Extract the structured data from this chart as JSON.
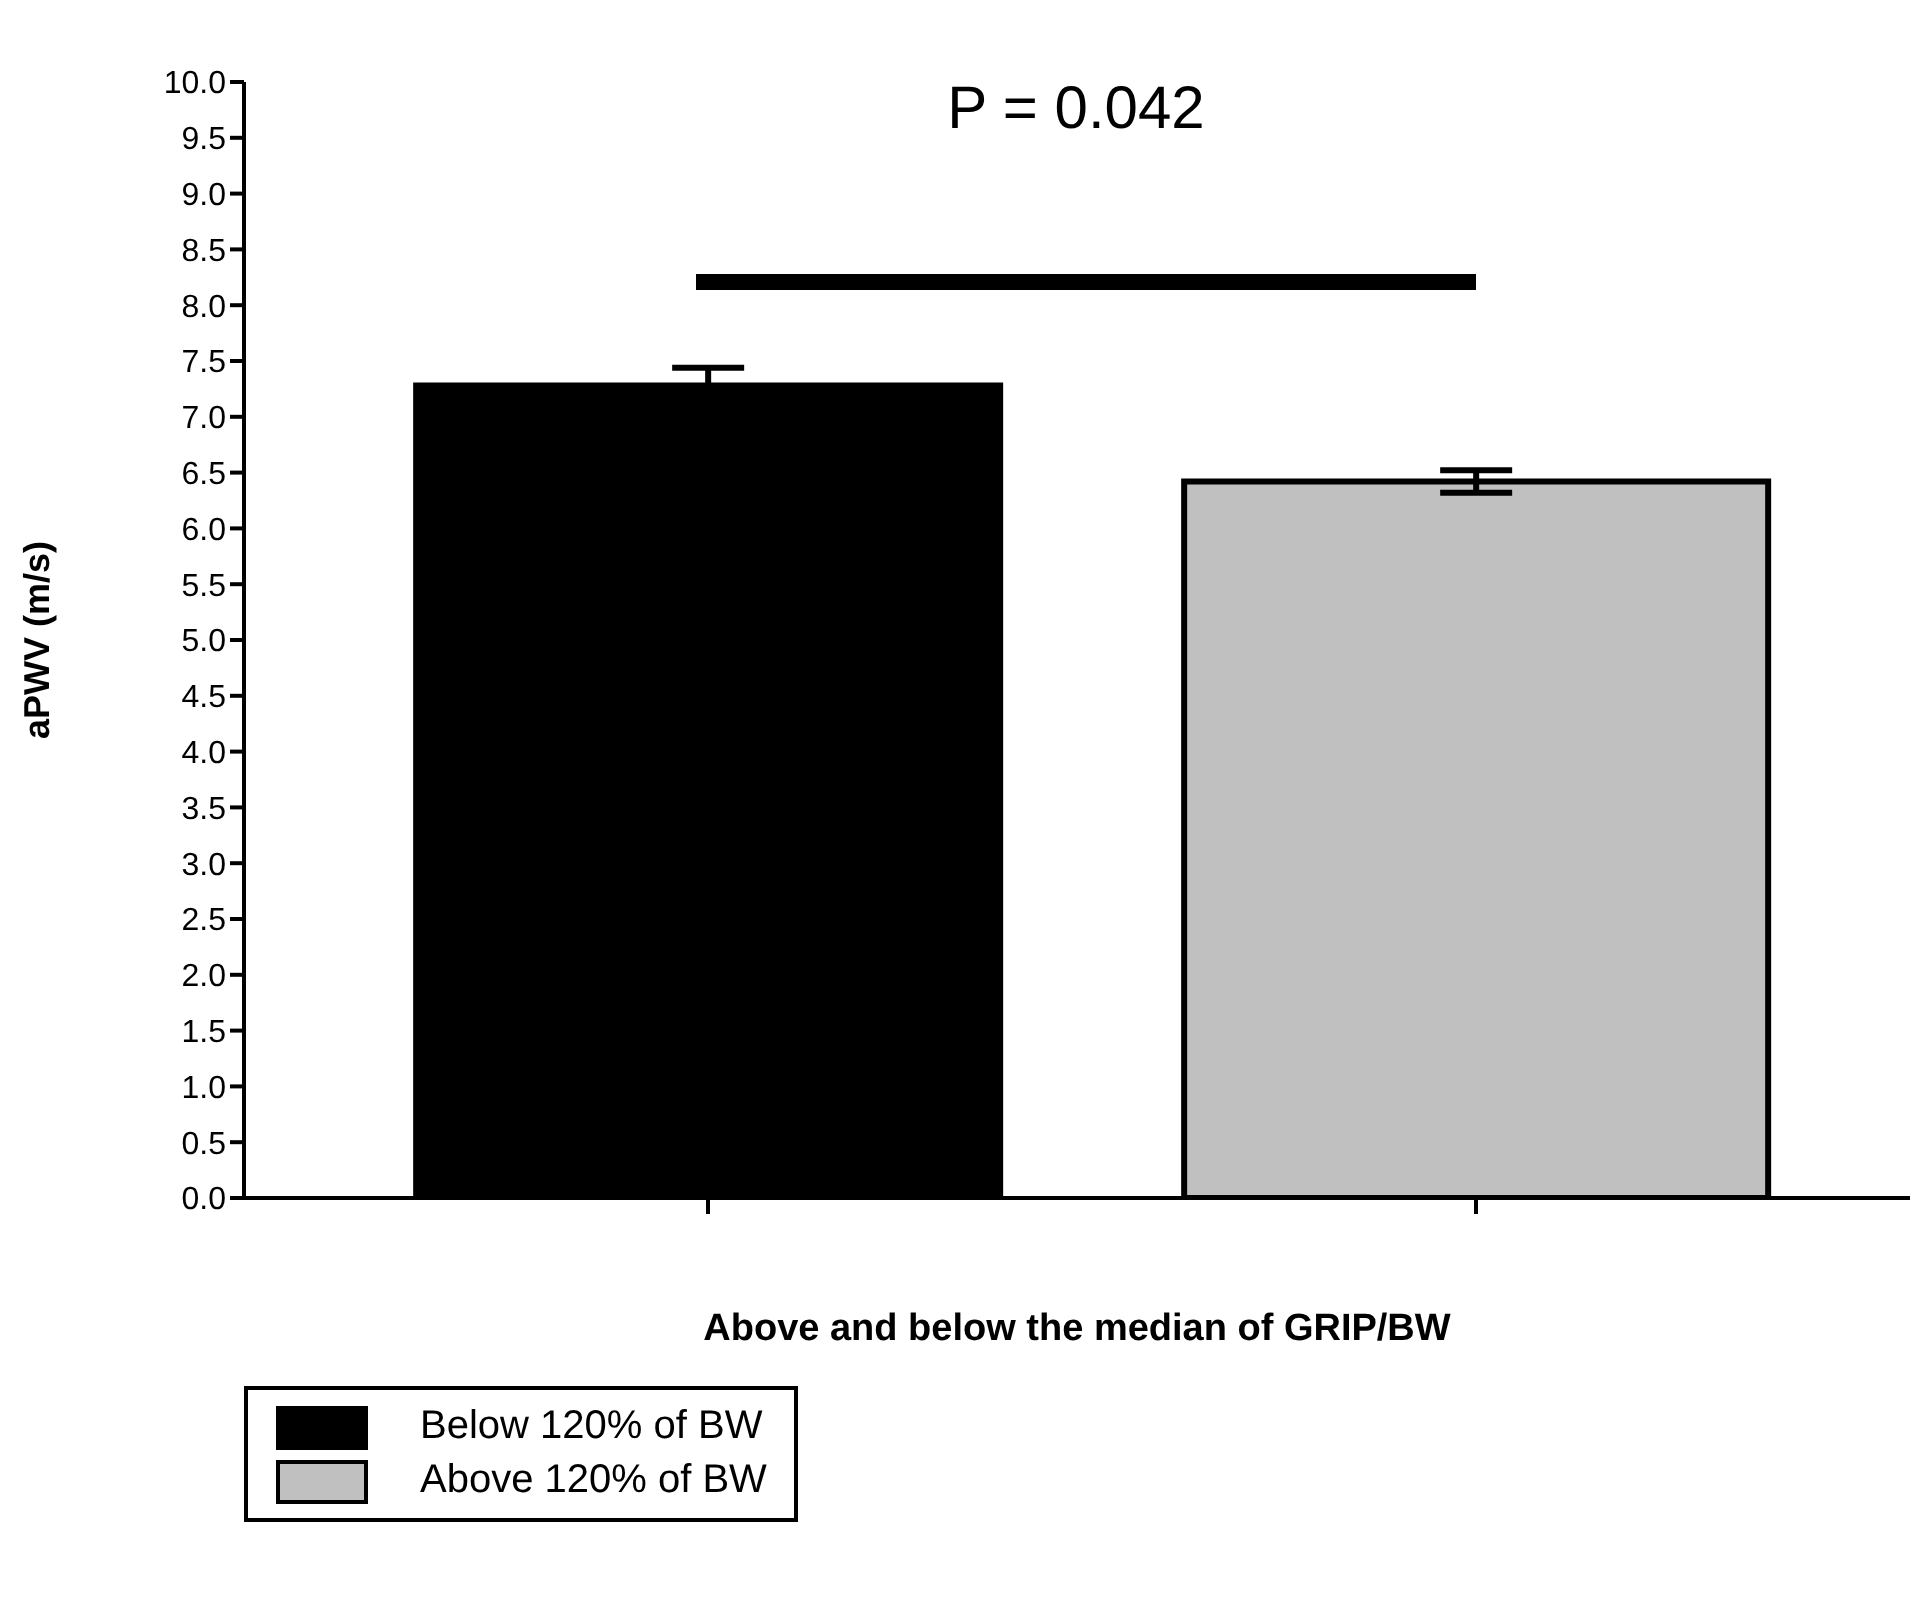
{
  "chart_data": {
    "type": "bar",
    "ylabel": "aPWV (m/s)",
    "xlabel": "Above and below the median of GRIP/BW",
    "categories": [
      null,
      null
    ],
    "series": [
      {
        "name": "Below 120% of BW",
        "color": "#000000",
        "values": [
          7.28,
          null
        ],
        "errors": [
          0.16,
          null
        ]
      },
      {
        "name": "Above 120% of BW",
        "color": "#c0c0c0",
        "values": [
          null,
          6.42
        ],
        "errors": [
          null,
          0.1
        ]
      }
    ],
    "ylim": [
      0,
      10
    ],
    "yticks": [
      {
        "value": 0,
        "label": "0.0"
      },
      {
        "value": 0.5,
        "label": "0.5"
      },
      {
        "value": 1,
        "label": "1.0"
      },
      {
        "value": 1.5,
        "label": "1.5"
      },
      {
        "value": 2,
        "label": "2.0"
      },
      {
        "value": 2.5,
        "label": "2.5"
      },
      {
        "value": 3,
        "label": "3.0"
      },
      {
        "value": 3.5,
        "label": "3.5"
      },
      {
        "value": 4,
        "label": "4.0"
      },
      {
        "value": 4.5,
        "label": "4.5"
      },
      {
        "value": 5,
        "label": "5.0"
      },
      {
        "value": 5.5,
        "label": "5.5"
      },
      {
        "value": 6,
        "label": "6.0"
      },
      {
        "value": 6.5,
        "label": "6.5"
      },
      {
        "value": 7,
        "label": "7.0"
      },
      {
        "value": 7.5,
        "label": "7.5"
      },
      {
        "value": 8,
        "label": "8.0"
      },
      {
        "value": 8.5,
        "label": "8.5"
      },
      {
        "value": 9,
        "label": "9.0"
      },
      {
        "value": 9.5,
        "label": "9.5"
      },
      {
        "value": 10,
        "label": "10.0"
      }
    ],
    "grid": false,
    "legend": "bottom left",
    "annotations": [
      "P = 0.042"
    ]
  }
}
